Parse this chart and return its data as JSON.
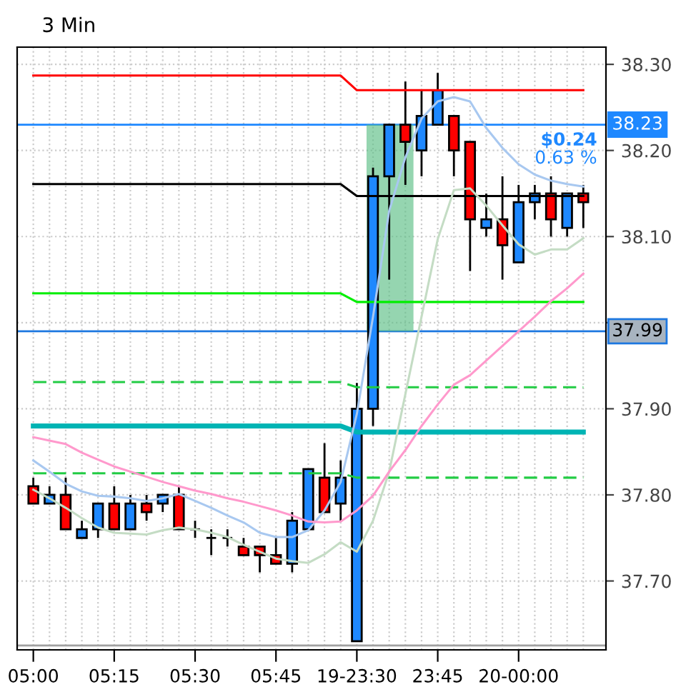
{
  "chart_data": {
    "type": "candlestick",
    "title": "3 Min",
    "categories": [
      "05:00",
      null,
      null,
      null,
      null,
      "05:15",
      null,
      null,
      null,
      null,
      "05:30",
      null,
      null,
      null,
      null,
      "05:45",
      null,
      null,
      null,
      null,
      "19-23:30",
      null,
      null,
      null,
      null,
      "23:45",
      null,
      null,
      null,
      null,
      "20-00:00",
      null,
      null,
      null,
      null
    ],
    "ohlc": [
      [
        37.81,
        37.82,
        37.79,
        37.79
      ],
      [
        37.79,
        37.81,
        37.79,
        37.8
      ],
      [
        37.8,
        37.82,
        37.76,
        37.76
      ],
      [
        37.75,
        37.77,
        37.75,
        37.76
      ],
      [
        37.76,
        37.79,
        37.75,
        37.79
      ],
      [
        37.79,
        37.81,
        37.76,
        37.76
      ],
      [
        37.76,
        37.8,
        37.76,
        37.79
      ],
      [
        37.79,
        37.8,
        37.77,
        37.78
      ],
      [
        37.79,
        37.8,
        37.78,
        37.8
      ],
      [
        37.8,
        37.81,
        37.76,
        37.76
      ],
      [
        37.76,
        37.77,
        37.75,
        37.76
      ],
      [
        37.75,
        37.76,
        37.73,
        37.75
      ],
      [
        37.75,
        37.76,
        37.74,
        37.75
      ],
      [
        37.74,
        37.75,
        37.73,
        37.73
      ],
      [
        37.74,
        37.74,
        37.71,
        37.73
      ],
      [
        37.73,
        37.75,
        37.72,
        37.72
      ],
      [
        37.72,
        37.78,
        37.71,
        37.77
      ],
      [
        37.76,
        37.83,
        37.76,
        37.83
      ],
      [
        37.82,
        37.86,
        37.78,
        37.78
      ],
      [
        37.79,
        37.84,
        37.77,
        37.82
      ],
      [
        37.63,
        37.93,
        37.63,
        37.9
      ],
      [
        37.9,
        38.18,
        37.88,
        38.17
      ],
      [
        38.17,
        38.23,
        38.05,
        38.23
      ],
      [
        38.23,
        38.28,
        38.16,
        38.21
      ],
      [
        38.2,
        38.27,
        38.17,
        38.24
      ],
      [
        38.23,
        38.29,
        38.23,
        38.27
      ],
      [
        38.24,
        38.24,
        38.17,
        38.2
      ],
      [
        38.21,
        38.21,
        38.06,
        38.12
      ],
      [
        38.11,
        38.15,
        38.1,
        38.12
      ],
      [
        38.12,
        38.17,
        38.05,
        38.09
      ],
      [
        38.07,
        38.16,
        38.07,
        38.14
      ],
      [
        38.14,
        38.16,
        38.12,
        38.15
      ],
      [
        38.15,
        38.17,
        38.1,
        38.12
      ],
      [
        38.11,
        38.15,
        38.1,
        38.15
      ],
      [
        38.15,
        38.16,
        38.11,
        38.14
      ]
    ],
    "colors": [
      "#ff0000",
      "#1e88ff",
      "#ff0000",
      "#1e88ff",
      "#1e88ff",
      "#ff0000",
      "#1e88ff",
      "#ff0000",
      "#1e88ff",
      "#ff0000",
      "#000000",
      "#000000",
      "#000000",
      "#ff0000",
      "#ff0000",
      "#ff0000",
      "#1e88ff",
      "#1e88ff",
      "#ff0000",
      "#1e88ff",
      "#1e88ff",
      "#1e88ff",
      "#1e88ff",
      "#ff0000",
      "#1e88ff",
      "#1e88ff",
      "#ff0000",
      "#ff0000",
      "#1e88ff",
      "#ff0000",
      "#1e88ff",
      "#1e88ff",
      "#ff0000",
      "#1e88ff",
      "#ff0000"
    ],
    "series": [
      {
        "type": "line",
        "color": "#ff0000",
        "values": [
          38.287,
          38.287,
          38.287,
          38.287,
          38.287,
          38.287,
          38.287,
          38.287,
          38.287,
          38.287,
          38.287,
          38.287,
          38.287,
          38.287,
          38.287,
          38.287,
          38.287,
          38.287,
          38.287,
          38.287,
          38.27,
          38.27,
          38.27,
          38.27,
          38.27,
          38.27,
          38.27,
          38.27,
          38.27,
          38.27,
          38.27,
          38.27,
          38.27,
          38.27,
          38.27
        ]
      },
      {
        "type": "line",
        "color": "#000000",
        "values": [
          38.161,
          38.161,
          38.161,
          38.161,
          38.161,
          38.161,
          38.161,
          38.161,
          38.161,
          38.161,
          38.161,
          38.161,
          38.161,
          38.161,
          38.161,
          38.161,
          38.161,
          38.161,
          38.161,
          38.161,
          38.147,
          38.147,
          38.147,
          38.147,
          38.147,
          38.147,
          38.147,
          38.147,
          38.147,
          38.147,
          38.147,
          38.147,
          38.147,
          38.147,
          38.147
        ]
      },
      {
        "type": "line",
        "color": "#00ee00",
        "values": [
          38.034,
          38.034,
          38.034,
          38.034,
          38.034,
          38.034,
          38.034,
          38.034,
          38.034,
          38.034,
          38.034,
          38.034,
          38.034,
          38.034,
          38.034,
          38.034,
          38.034,
          38.034,
          38.034,
          38.034,
          38.024,
          38.024,
          38.024,
          38.024,
          38.024,
          38.024,
          38.024,
          38.024,
          38.024,
          38.024,
          38.024,
          38.024,
          38.024,
          38.024,
          38.024
        ]
      },
      {
        "type": "line",
        "color": "#00b4b4",
        "values": [
          37.88,
          37.88,
          37.88,
          37.88,
          37.88,
          37.88,
          37.88,
          37.88,
          37.88,
          37.88,
          37.88,
          37.88,
          37.88,
          37.88,
          37.88,
          37.88,
          37.88,
          37.88,
          37.88,
          37.88,
          37.873,
          37.873,
          37.873,
          37.873,
          37.873,
          37.873,
          37.873,
          37.873,
          37.873,
          37.873,
          37.873,
          37.873,
          37.873,
          37.873,
          37.873
        ]
      },
      {
        "type": "line",
        "color": "#22cc44",
        "line_style": "dashed",
        "values": [
          37.931,
          37.931,
          37.931,
          37.931,
          37.931,
          37.931,
          37.931,
          37.931,
          37.931,
          37.931,
          37.931,
          37.931,
          37.931,
          37.931,
          37.931,
          37.931,
          37.931,
          37.931,
          37.931,
          37.931,
          37.925,
          37.925,
          37.925,
          37.925,
          37.925,
          37.925,
          37.925,
          37.925,
          37.925,
          37.925,
          37.925,
          37.925,
          37.925,
          37.925,
          37.925
        ]
      },
      {
        "type": "line",
        "color": "#22cc44",
        "line_style": "dashed",
        "values": [
          37.825,
          37.825,
          37.825,
          37.825,
          37.825,
          37.825,
          37.825,
          37.825,
          37.825,
          37.825,
          37.825,
          37.825,
          37.825,
          37.825,
          37.825,
          37.825,
          37.825,
          37.825,
          37.825,
          37.825,
          37.82,
          37.82,
          37.82,
          37.82,
          37.82,
          37.82,
          37.82,
          37.82,
          37.82,
          37.82,
          37.82,
          37.82,
          37.82,
          37.82,
          37.82
        ]
      },
      {
        "type": "line",
        "color": "#a8c8f0",
        "values": [
          37.84,
          37.827,
          37.813,
          37.804,
          37.799,
          37.798,
          37.796,
          37.793,
          37.796,
          37.801,
          37.793,
          37.785,
          37.776,
          37.768,
          37.756,
          37.751,
          37.751,
          37.759,
          37.782,
          37.815,
          37.894,
          38.007,
          38.13,
          38.192,
          38.237,
          38.257,
          38.262,
          38.257,
          38.226,
          38.203,
          38.184,
          38.172,
          38.165,
          38.161,
          38.158
        ]
      },
      {
        "type": "line",
        "color": "#c4dcc4",
        "values": [
          37.806,
          37.796,
          37.785,
          37.773,
          37.762,
          37.756,
          37.755,
          37.754,
          37.759,
          37.762,
          37.76,
          37.756,
          37.751,
          37.742,
          37.734,
          37.726,
          37.723,
          37.721,
          37.731,
          37.745,
          37.734,
          37.77,
          37.827,
          37.917,
          38.007,
          38.097,
          38.154,
          38.156,
          38.136,
          38.113,
          38.091,
          38.079,
          38.085,
          38.085,
          38.098
        ]
      },
      {
        "type": "line",
        "color": "#ff99cc",
        "values": [
          37.867,
          37.863,
          37.859,
          37.849,
          37.841,
          37.833,
          37.827,
          37.821,
          37.815,
          37.81,
          37.805,
          37.801,
          37.796,
          37.792,
          37.787,
          37.782,
          37.776,
          37.769,
          37.768,
          37.769,
          37.782,
          37.799,
          37.827,
          37.852,
          37.88,
          37.905,
          37.928,
          37.939,
          37.956,
          37.973,
          37.99,
          38.007,
          38.025,
          38.04,
          38.057
        ]
      }
    ],
    "ylim": [
      37.62,
      38.32
    ],
    "yticks": [
      {
        "value": 37.7,
        "label": "37.70"
      },
      {
        "value": 37.8,
        "label": "37.80"
      },
      {
        "value": 37.9,
        "label": "37.90"
      },
      {
        "value": 38.0,
        "label": null
      },
      {
        "value": 38.1,
        "label": "38.10"
      },
      {
        "value": 38.2,
        "label": "38.20"
      },
      {
        "value": 38.3,
        "label": "38.30"
      }
    ],
    "ref_lines": [
      {
        "axis": "y",
        "value": 37.99,
        "label": "37.99",
        "color": "#1e78e0"
      },
      {
        "axis": "y",
        "value": 38.23,
        "label": "38.23",
        "color": "#1e88ff"
      },
      {
        "axis": "y",
        "value": 37.625,
        "label": null,
        "color": "#a0a0a0"
      }
    ],
    "bands": [
      {
        "axis": "y",
        "from": 37.99,
        "to": 38.23,
        "label": null,
        "color": "#5cbf85"
      }
    ],
    "annotations": [
      "$0.24",
      "0.63 %"
    ],
    "grid": true,
    "legend": false
  }
}
